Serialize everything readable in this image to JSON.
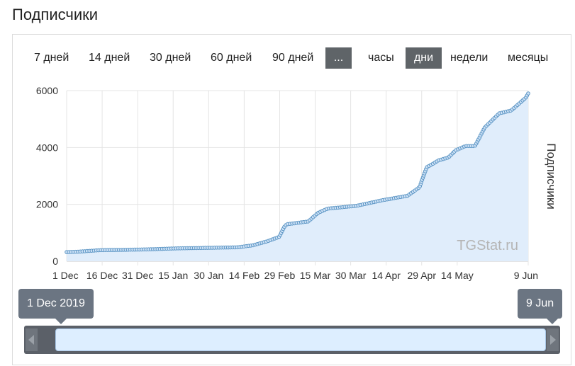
{
  "header": {
    "title": "Подписчики"
  },
  "toolbar": {
    "periods": [
      {
        "label": "7 дней",
        "active": false
      },
      {
        "label": "14 дней",
        "active": false
      },
      {
        "label": "30 дней",
        "active": false
      },
      {
        "label": "60 дней",
        "active": false
      },
      {
        "label": "90 дней",
        "active": false
      },
      {
        "label": "...",
        "active": true
      }
    ],
    "granularity": [
      {
        "label": "часы",
        "active": false
      },
      {
        "label": "дни",
        "active": true
      },
      {
        "label": "недели",
        "active": false
      },
      {
        "label": "месяцы",
        "active": false
      }
    ]
  },
  "chart_data": {
    "type": "area",
    "title": "",
    "xlabel": "",
    "ylabel": "Подписчики",
    "watermark": "TGStat.ru",
    "ylim": [
      0,
      6000
    ],
    "yticks": [
      0,
      2000,
      4000,
      6000
    ],
    "xticks": [
      "1 Dec",
      "16 Dec",
      "31 Dec",
      "15 Jan",
      "30 Jan",
      "14 Feb",
      "29 Feb",
      "15 Mar",
      "30 Mar",
      "14 Apr",
      "29 Apr",
      "14 May",
      "9 Jun"
    ],
    "grid": true,
    "legend": "none",
    "colors": {
      "line": "#6ea2cc",
      "fill": "#e0edfb",
      "marker": "#5b95c4"
    },
    "series": [
      {
        "x": [
          "2019-12-01",
          "2019-12-05",
          "2019-12-10",
          "2019-12-15",
          "2019-12-25",
          "2020-01-05",
          "2020-01-15",
          "2020-01-28",
          "2020-02-10",
          "2020-02-16",
          "2020-02-22",
          "2020-02-27",
          "2020-02-29",
          "2020-03-01",
          "2020-03-10",
          "2020-03-14",
          "2020-03-18",
          "2020-03-30",
          "2020-04-10",
          "2020-04-20",
          "2020-04-25",
          "2020-04-28",
          "2020-05-03",
          "2020-05-07",
          "2020-05-10",
          "2020-05-14",
          "2020-05-18",
          "2020-05-22",
          "2020-05-28",
          "2020-06-02",
          "2020-06-08",
          "2020-06-09"
        ],
        "y": [
          320,
          330,
          360,
          390,
          400,
          420,
          450,
          470,
          490,
          560,
          700,
          860,
          1200,
          1300,
          1400,
          1700,
          1850,
          1950,
          2150,
          2300,
          2600,
          3300,
          3550,
          3650,
          3900,
          4050,
          4050,
          4700,
          5200,
          5300,
          5750,
          5900
        ]
      }
    ]
  },
  "navigator": {
    "start_label": "1 Dec 2019",
    "end_label": "9 Jun",
    "window_start": 0,
    "window_end": 1
  }
}
